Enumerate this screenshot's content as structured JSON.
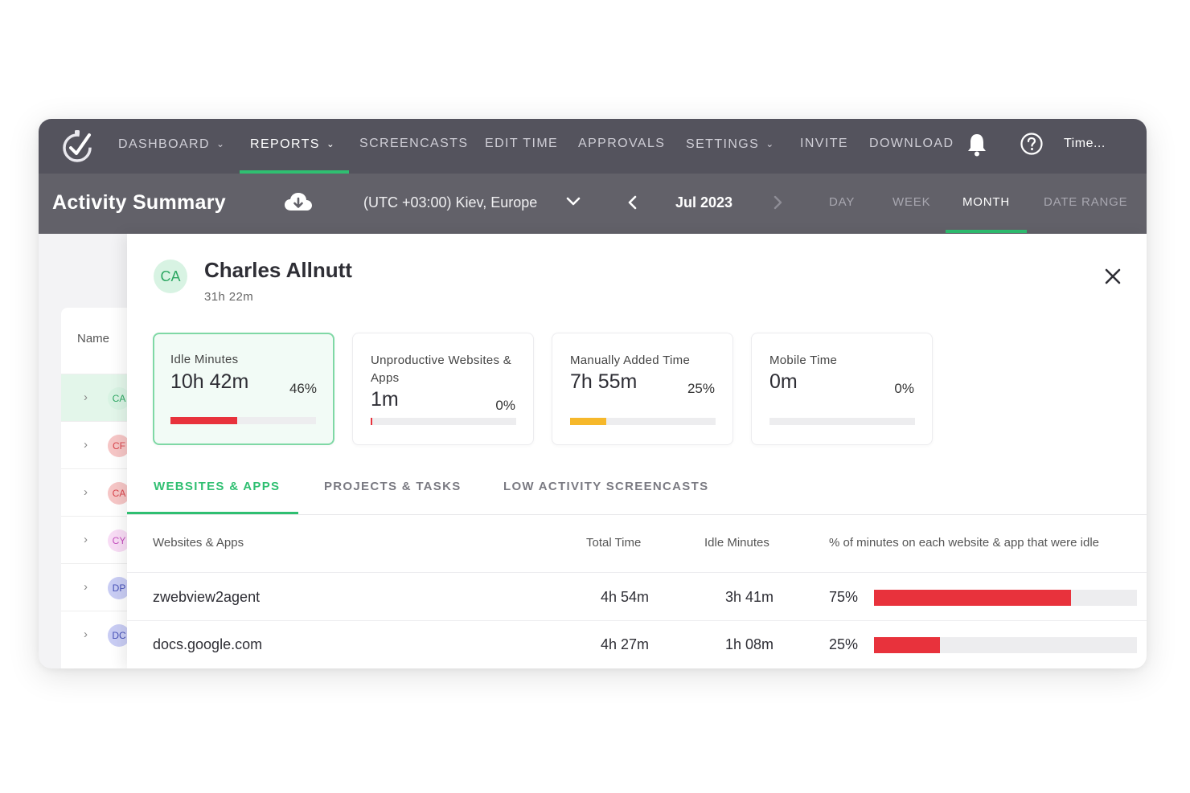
{
  "nav": {
    "items": [
      {
        "label": "DASHBOARD",
        "dropdown": true,
        "active": false
      },
      {
        "label": "REPORTS",
        "dropdown": true,
        "active": true
      },
      {
        "label": "SCREENCASTS",
        "dropdown": false,
        "active": false
      },
      {
        "label": "EDIT TIME",
        "dropdown": false,
        "active": false
      },
      {
        "label": "APPROVALS",
        "dropdown": false,
        "active": false
      },
      {
        "label": "SETTINGS",
        "dropdown": true,
        "active": false
      },
      {
        "label": "INVITE",
        "dropdown": false,
        "active": false
      },
      {
        "label": "DOWNLOAD",
        "dropdown": false,
        "active": false
      }
    ],
    "account_label": "Time...",
    "icons": {
      "logo": "clock-check-icon",
      "bell": "bell-icon",
      "help": "help-circle-icon"
    }
  },
  "subheader": {
    "title": "Activity Summary",
    "timezone": "(UTC +03:00) Kiev, Europe",
    "period": "Jul 2023",
    "ranges": [
      {
        "label": "DAY",
        "active": false
      },
      {
        "label": "WEEK",
        "active": false
      },
      {
        "label": "MONTH",
        "active": true
      },
      {
        "label": "DATE RANGE",
        "active": false
      }
    ]
  },
  "background_list": {
    "header": "Name",
    "rows": [
      {
        "initials": "CA",
        "bg": "#d8f3e3",
        "fg": "#2fa864",
        "selected": true
      },
      {
        "initials": "CF",
        "bg": "#f6c6c6",
        "fg": "#d9454d",
        "selected": false
      },
      {
        "initials": "CA",
        "bg": "#f6c6c6",
        "fg": "#d9454d",
        "selected": false
      },
      {
        "initials": "CY",
        "bg": "#f8dcf5",
        "fg": "#c54fbf",
        "selected": false
      },
      {
        "initials": "DP",
        "bg": "#c9cdf4",
        "fg": "#4852b8",
        "selected": false
      },
      {
        "initials": "DC",
        "bg": "#c9cdf4",
        "fg": "#4852b8",
        "selected": false
      }
    ]
  },
  "user": {
    "initials": "CA",
    "name": "Charles Allnutt",
    "total": "31h 22m"
  },
  "cards": [
    {
      "label": "Idle Minutes",
      "value": "10h 42m",
      "pct": "46%",
      "fill": 0.46,
      "color": "#e8323c",
      "active": true
    },
    {
      "label": "Unproductive Websites & Apps",
      "value": "1m",
      "pct": "0%",
      "fill": 0.01,
      "color": "#e8323c",
      "active": false
    },
    {
      "label": "Manually Added Time",
      "value": "7h 55m",
      "pct": "25%",
      "fill": 0.25,
      "color": "#f6b82b",
      "active": false
    },
    {
      "label": "Mobile Time",
      "value": "0m",
      "pct": "0%",
      "fill": 0,
      "color": "#e8323c",
      "active": false
    }
  ],
  "tabs": [
    {
      "label": "WEBSITES & APPS",
      "active": true
    },
    {
      "label": "PROJECTS & TASKS",
      "active": false
    },
    {
      "label": "LOW ACTIVITY SCREENCASTS",
      "active": false
    }
  ],
  "table": {
    "headers": {
      "name": "Websites & Apps",
      "total": "Total Time",
      "idle": "Idle Minutes",
      "pct": "% of minutes on each website & app that were idle"
    },
    "rows": [
      {
        "name": "zwebview2agent",
        "total": "4h 54m",
        "idle": "3h 41m",
        "pct": "75%",
        "fill": 0.75
      },
      {
        "name": "docs.google.com",
        "total": "4h 27m",
        "idle": "1h 08m",
        "pct": "25%",
        "fill": 0.25
      }
    ]
  }
}
